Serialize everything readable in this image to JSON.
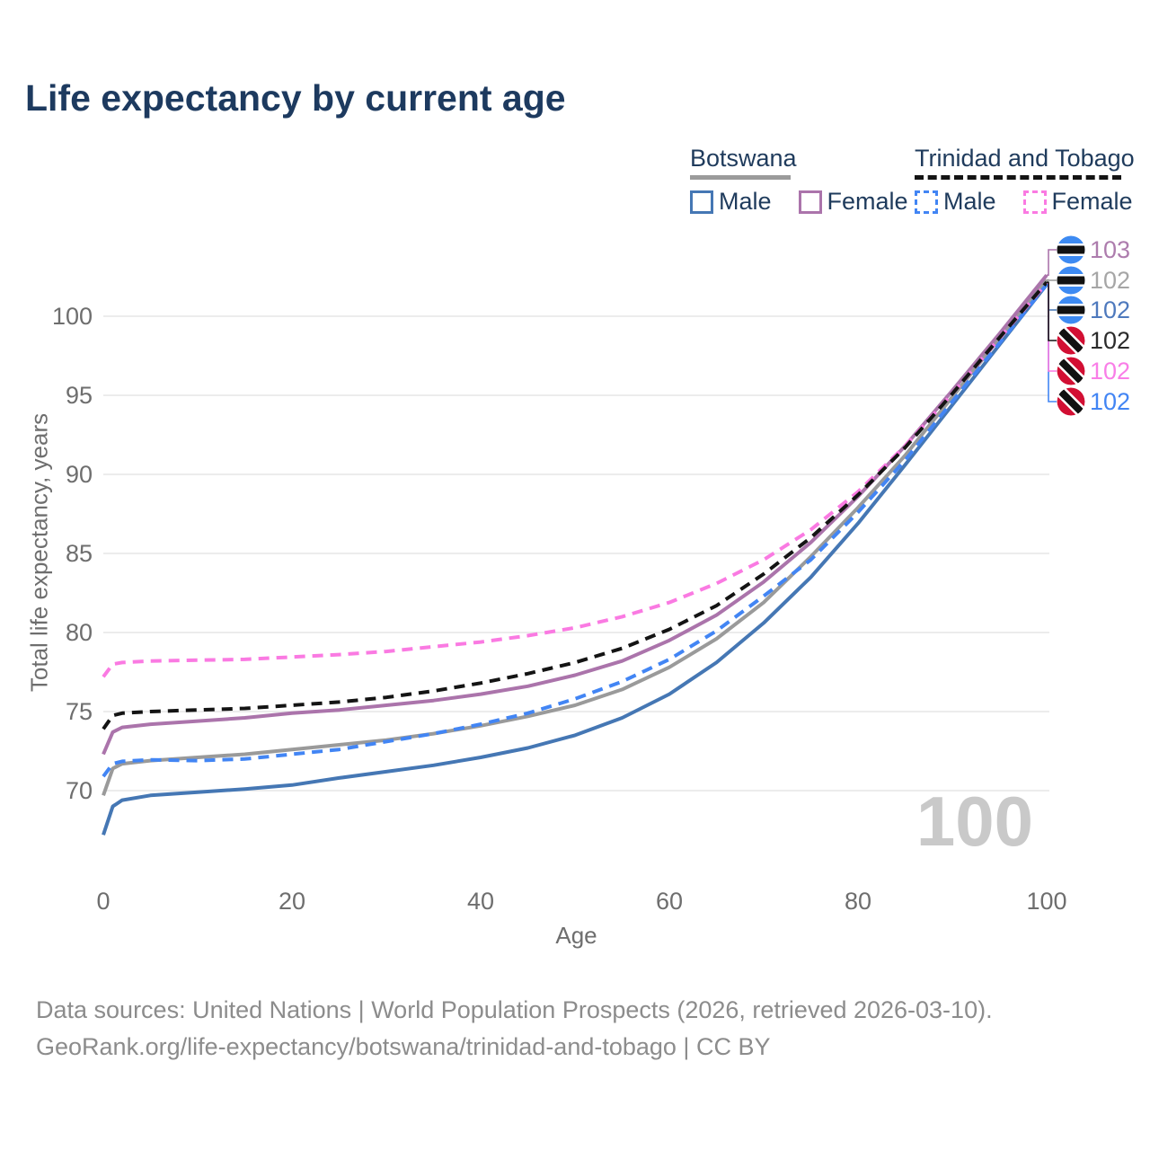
{
  "title": "Life expectancy by current age",
  "legend": {
    "groups": [
      {
        "label": "Botswana",
        "line_style": "solid",
        "underline_color": "#9b9b9b",
        "items": [
          {
            "label": "Male",
            "color": "#4577b4",
            "dashed": false
          },
          {
            "label": "Female",
            "color": "#ab74ab",
            "dashed": false
          }
        ]
      },
      {
        "label": "Trinidad and Tobago",
        "line_style": "dashed",
        "underline_color": "#141414",
        "items": [
          {
            "label": "Male",
            "color": "#4285f4",
            "dashed": true
          },
          {
            "label": "Female",
            "color": "#fa7ae2",
            "dashed": true
          }
        ]
      }
    ]
  },
  "chart_data": {
    "type": "line",
    "title": "Life expectancy by current age",
    "x_axis": {
      "title": "Age",
      "ticks": [
        0,
        20,
        40,
        60,
        80,
        100
      ],
      "lim": [
        0,
        100
      ]
    },
    "y_axis": {
      "title": "Total life expectancy, years",
      "ticks": [
        70,
        75,
        80,
        85,
        90,
        95,
        100
      ],
      "lim": [
        65.5,
        103.5
      ]
    },
    "grid": "horizontal",
    "legend_position": "top-right",
    "x": [
      0,
      1,
      2,
      5,
      10,
      15,
      20,
      25,
      30,
      35,
      40,
      45,
      50,
      55,
      60,
      65,
      70,
      75,
      80,
      85,
      90,
      95,
      100
    ],
    "series": [
      {
        "id": "bw-male",
        "name": "Botswana Male",
        "country": "Botswana",
        "sex": "Male",
        "color": "#4577b4",
        "dashed": false,
        "flag": "botswana",
        "end_label": "102",
        "end_label_color": "#4e79bd",
        "label_slot": 2,
        "values": [
          67.2,
          69.0,
          69.4,
          69.7,
          69.9,
          70.1,
          70.35,
          70.8,
          71.2,
          71.6,
          72.1,
          72.7,
          73.5,
          74.6,
          76.1,
          78.1,
          80.6,
          83.5,
          86.9,
          90.6,
          94.4,
          98.2,
          102.0
        ]
      },
      {
        "id": "bw-total",
        "name": "Botswana Total",
        "country": "Botswana",
        "sex": "Total",
        "color": "#9a9a9a",
        "dashed": false,
        "flag": "botswana",
        "end_label": "102",
        "end_label_color": "#a6a6a6",
        "label_slot": 1,
        "values": [
          69.7,
          71.4,
          71.7,
          71.9,
          72.1,
          72.3,
          72.6,
          72.9,
          73.2,
          73.6,
          74.1,
          74.7,
          75.4,
          76.4,
          77.8,
          79.6,
          81.9,
          84.8,
          87.9,
          91.2,
          94.9,
          98.6,
          102.3
        ]
      },
      {
        "id": "bw-female",
        "name": "Botswana Female",
        "country": "Botswana",
        "sex": "Female",
        "color": "#ab74ab",
        "dashed": false,
        "flag": "botswana",
        "end_label": "103",
        "end_label_color": "#ad7cad",
        "label_slot": 0,
        "values": [
          72.3,
          73.7,
          74.0,
          74.2,
          74.4,
          74.6,
          74.9,
          75.1,
          75.4,
          75.7,
          76.1,
          76.6,
          77.3,
          78.2,
          79.5,
          81.1,
          83.2,
          85.7,
          88.6,
          91.8,
          95.3,
          98.9,
          102.6
        ]
      },
      {
        "id": "tt-male",
        "name": "Trinidad and Tobago Male",
        "country": "Trinidad and Tobago",
        "sex": "Male",
        "color": "#4285f4",
        "dashed": true,
        "flag": "trinidad-and-tobago",
        "end_label": "102",
        "end_label_color": "#4285f4",
        "label_slot": 5,
        "values": [
          70.9,
          71.7,
          71.85,
          71.95,
          71.9,
          72.0,
          72.3,
          72.6,
          73.1,
          73.6,
          74.2,
          74.9,
          75.8,
          76.9,
          78.3,
          80.1,
          82.3,
          84.6,
          87.6,
          90.9,
          94.6,
          98.3,
          102.0
        ]
      },
      {
        "id": "tt-female",
        "name": "Trinidad and Tobago Female",
        "country": "Trinidad and Tobago",
        "sex": "Female",
        "color": "#fa7ae2",
        "dashed": true,
        "flag": "trinidad-and-tobago",
        "end_label": "102",
        "end_label_color": "#f97ee7",
        "label_slot": 4,
        "values": [
          77.2,
          78.0,
          78.1,
          78.2,
          78.25,
          78.3,
          78.45,
          78.6,
          78.8,
          79.1,
          79.4,
          79.8,
          80.3,
          81.0,
          81.9,
          83.1,
          84.6,
          86.5,
          88.9,
          91.8,
          95.1,
          98.6,
          102.1
        ]
      },
      {
        "id": "tt-total",
        "name": "Trinidad and Tobago Total",
        "country": "Trinidad and Tobago",
        "sex": "Total",
        "color": "#141414",
        "dashed": true,
        "flag": "trinidad-and-tobago",
        "end_label": "102",
        "end_label_color": "#2b2b2b",
        "label_slot": 3,
        "values": [
          73.9,
          74.75,
          74.9,
          75.0,
          75.1,
          75.2,
          75.4,
          75.6,
          75.9,
          76.3,
          76.8,
          77.4,
          78.1,
          79.0,
          80.2,
          81.7,
          83.7,
          86.0,
          88.7,
          91.7,
          95.1,
          98.65,
          102.15
        ]
      }
    ],
    "flag_colors": {
      "botswana_blue": "#3d8af2",
      "trinidad_red": "#d20f33",
      "stripe_black": "#111111",
      "stripe_white": "#ffffff"
    }
  },
  "annotations": {
    "age_counter": "100"
  },
  "footer": {
    "line1": "Data sources: United Nations | World Population Prospects (2026, retrieved 2026-03-10).",
    "line2": "GeoRank.org/life-expectancy/botswana/trinidad-and-tobago | CC BY"
  }
}
